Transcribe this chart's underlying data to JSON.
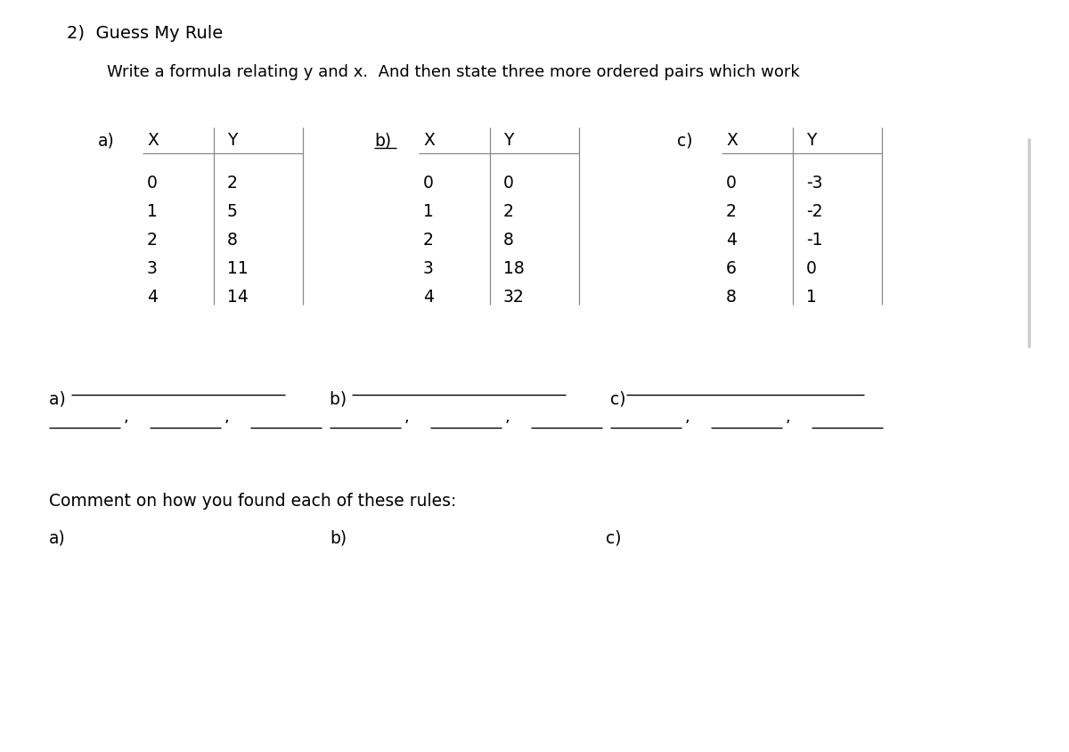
{
  "title": "2)  Guess My Rule",
  "subtitle": "Write a formula relating y and x.  And then state three more ordered pairs which work",
  "bg_color": "#ffffff",
  "font_color": "#000000",
  "font_size": 13.5,
  "table_a_label": "a)",
  "table_a_x": [
    "0",
    "1",
    "2",
    "3",
    "4"
  ],
  "table_a_y": [
    "2",
    "5",
    "8",
    "11",
    "14"
  ],
  "table_b_label": "b)",
  "table_b_x": [
    "0",
    "1",
    "2",
    "3",
    "4"
  ],
  "table_b_y": [
    "0",
    "2",
    "8",
    "18",
    "32"
  ],
  "table_c_label": "c)",
  "table_c_x": [
    "0",
    "2",
    "4",
    "6",
    "8"
  ],
  "table_c_y": [
    "-3",
    "-2",
    "-1",
    "0",
    "1"
  ],
  "comment_header": "Comment on how you found each of these rules:",
  "comment_a": "a)",
  "comment_b": "b)",
  "comment_c": "c)"
}
